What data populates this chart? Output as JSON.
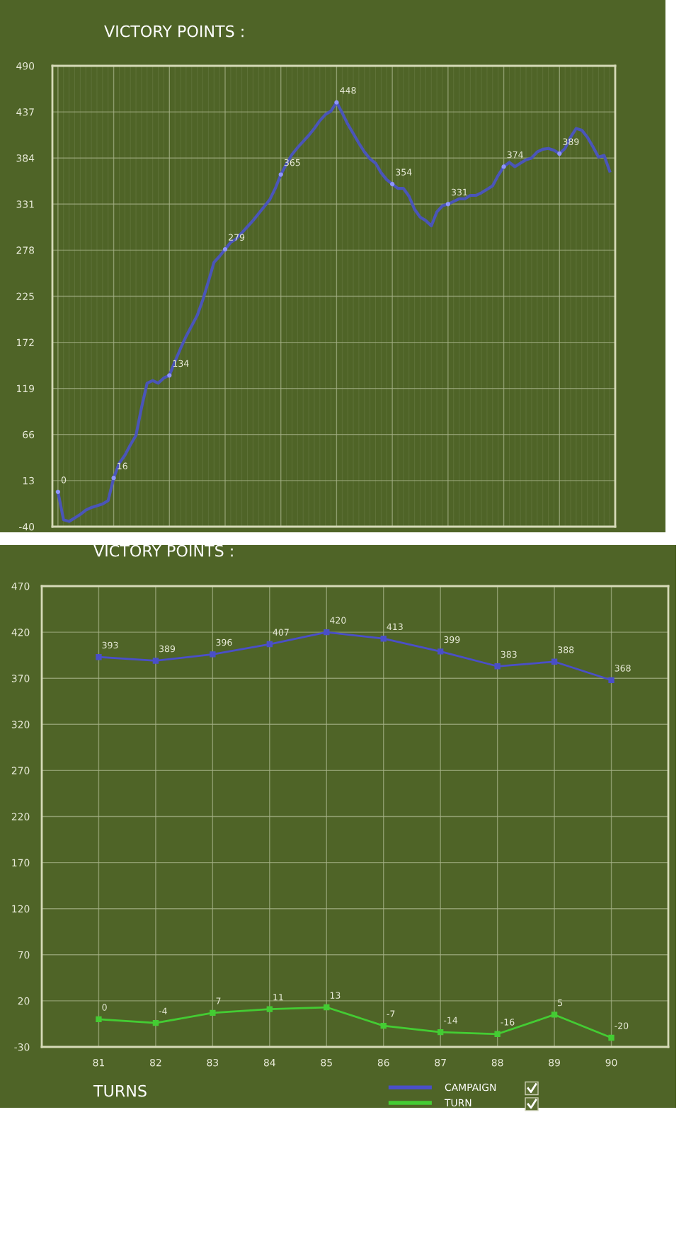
{
  "chart_data": [
    {
      "type": "line",
      "title": "VICTORY POINTS :",
      "categories": [
        null,
        null,
        null,
        null,
        null,
        null,
        null,
        null,
        null,
        null,
        null,
        null,
        null,
        null,
        null,
        null,
        null,
        null,
        null,
        null,
        null,
        null,
        null,
        null,
        null,
        null,
        null,
        null,
        null,
        null,
        null,
        null,
        null,
        null,
        null,
        null,
        null,
        null,
        null,
        null,
        null,
        null,
        null,
        null,
        null,
        null,
        null,
        null,
        null,
        null,
        null,
        null,
        null,
        null,
        null,
        null,
        null,
        null,
        null,
        null,
        null,
        null,
        null,
        null,
        null,
        null,
        null,
        null,
        null,
        null,
        null,
        null,
        null,
        null,
        null,
        null,
        null,
        null,
        null,
        null,
        null,
        null,
        null,
        null,
        null,
        null,
        null,
        null,
        null,
        null,
        null,
        null,
        null,
        null,
        null,
        null,
        null,
        null,
        null,
        null
      ],
      "series": [
        {
          "color": "#4a55b8",
          "values": [
            0,
            -32,
            -34,
            -30,
            -26,
            -21,
            -18,
            -16,
            -14,
            -10,
            16,
            33,
            42,
            54,
            65,
            97,
            125,
            128,
            125,
            131,
            134,
            150,
            165,
            179,
            191,
            203,
            221,
            242,
            264,
            271,
            279,
            287,
            291,
            298,
            305,
            312,
            320,
            328,
            336,
            349,
            365,
            377,
            388,
            396,
            403,
            410,
            418,
            427,
            434,
            438,
            448,
            436,
            423,
            412,
            401,
            391,
            383,
            378,
            367,
            359,
            354,
            349,
            349,
            340,
            325,
            316,
            312,
            306,
            322,
            329,
            331,
            334,
            337,
            337,
            341,
            341,
            344,
            348,
            352,
            364,
            374,
            379,
            374,
            378,
            382,
            384,
            391,
            394,
            395,
            393,
            389,
            395,
            408,
            418,
            416,
            408,
            397,
            385,
            387,
            369
          ],
          "value_labels": [
            "0",
            null,
            null,
            null,
            null,
            null,
            null,
            null,
            null,
            null,
            "16",
            null,
            null,
            null,
            null,
            null,
            null,
            null,
            null,
            null,
            "134",
            null,
            null,
            null,
            null,
            null,
            null,
            null,
            null,
            null,
            "279",
            null,
            null,
            null,
            null,
            null,
            null,
            null,
            null,
            null,
            "365",
            null,
            null,
            null,
            null,
            null,
            null,
            null,
            null,
            null,
            "448",
            null,
            null,
            null,
            null,
            null,
            null,
            null,
            null,
            null,
            "354",
            null,
            null,
            null,
            null,
            null,
            null,
            null,
            null,
            null,
            "331",
            null,
            null,
            null,
            null,
            null,
            null,
            null,
            null,
            null,
            "374",
            null,
            null,
            null,
            null,
            null,
            null,
            null,
            null,
            null,
            "389",
            null,
            null,
            null,
            null,
            null,
            null,
            null,
            null,
            null
          ]
        }
      ],
      "ylim": [
        -40,
        490
      ],
      "yticks": [
        -40,
        13,
        66,
        119,
        172,
        225,
        278,
        331,
        384,
        437,
        490
      ],
      "grid": true,
      "line_style": "solid"
    },
    {
      "type": "line",
      "title": "VICTORY POINTS :",
      "xlabel": "TURNS",
      "categories": [
        "81",
        "82",
        "83",
        "84",
        "85",
        "86",
        "87",
        "88",
        "89",
        "90"
      ],
      "series": [
        {
          "name": "CAMPAIGN",
          "color": "#4a4fc8",
          "values": [
            393,
            389,
            396,
            407,
            420,
            413,
            399,
            383,
            388,
            368
          ]
        },
        {
          "name": "TURN",
          "color": "#44cc33",
          "values": [
            0,
            -4,
            7,
            11,
            13,
            -7,
            -14,
            -16,
            5,
            -20
          ]
        }
      ],
      "ylim": [
        -30,
        470
      ],
      "yticks": [
        -30,
        20,
        70,
        120,
        170,
        220,
        270,
        320,
        370,
        420,
        470
      ],
      "grid": true,
      "legend": "bottom right",
      "data_labels": true,
      "marker": "square",
      "line_style": "solid"
    }
  ]
}
